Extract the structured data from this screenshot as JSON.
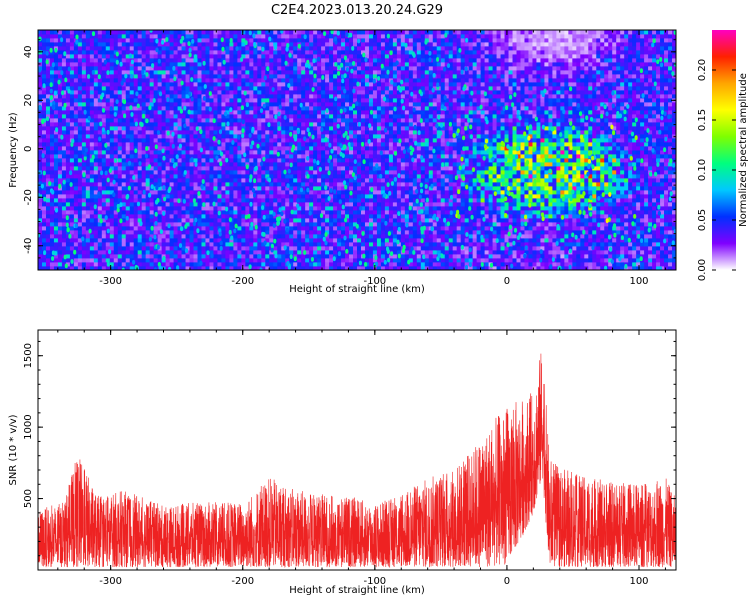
{
  "chart_data": [
    {
      "type": "heatmap",
      "title": "C2E4.2023.013.20.24.G29",
      "xlabel": "Height of straight line (km)",
      "ylabel": "Frequency (Hz)",
      "xlim": [
        -355,
        128
      ],
      "ylim": [
        -50,
        49
      ],
      "x_ticks": [
        -300,
        -200,
        -100,
        0,
        100
      ],
      "y_ticks": [
        -40,
        -20,
        0,
        20,
        40
      ],
      "colorbar": {
        "label": "Normalized spectral amplitude",
        "range": [
          0,
          0.24
        ],
        "ticks": [
          "0.00",
          "0.05",
          "0.10",
          "0.15",
          "0.20"
        ],
        "stops": [
          "#ffffff",
          "#7f00ff",
          "#0030ff",
          "#00c8ff",
          "#00ff7f",
          "#7fff00",
          "#ffff00",
          "#ffa500",
          "#ff2000",
          "#ff00c0"
        ]
      },
      "features": {
        "background_level": 0.04,
        "high_amplitude_region": {
          "x_range": [
            -40,
            100
          ],
          "y_range": [
            -30,
            12
          ],
          "peak_level": 0.2
        },
        "low_amplitude_region": {
          "x_range": [
            -30,
            100
          ],
          "y_range": [
            25,
            49
          ]
        }
      },
      "grid": false
    },
    {
      "type": "line",
      "title": "",
      "xlabel": "Height of straight line (km)",
      "ylabel": "SNR (10 * v/v)",
      "xlim": [
        -355,
        128
      ],
      "ylim": [
        0,
        1680
      ],
      "x_ticks": [
        -300,
        -200,
        -100,
        0,
        100
      ],
      "y_ticks": [
        500,
        1000,
        1500
      ],
      "series_color": "#ee2222",
      "envelope": {
        "x": [
          -355,
          -335,
          -325,
          -310,
          -290,
          -260,
          -240,
          -200,
          -180,
          -160,
          -140,
          -120,
          -100,
          -80,
          -70,
          -60,
          -45,
          -30,
          -15,
          0,
          10,
          20,
          27,
          32,
          40,
          60,
          80,
          100,
          120,
          128
        ],
        "top": [
          420,
          480,
          820,
          520,
          560,
          450,
          470,
          480,
          650,
          560,
          530,
          520,
          470,
          520,
          600,
          650,
          700,
          800,
          1000,
          1150,
          1200,
          1250,
          1600,
          800,
          720,
          650,
          620,
          600,
          650,
          500
        ],
        "bottom": [
          20,
          20,
          20,
          20,
          20,
          20,
          20,
          20,
          20,
          20,
          20,
          20,
          20,
          20,
          20,
          20,
          20,
          20,
          20,
          40,
          200,
          400,
          650,
          20,
          20,
          20,
          20,
          20,
          20,
          20
        ]
      },
      "grid": false
    }
  ]
}
